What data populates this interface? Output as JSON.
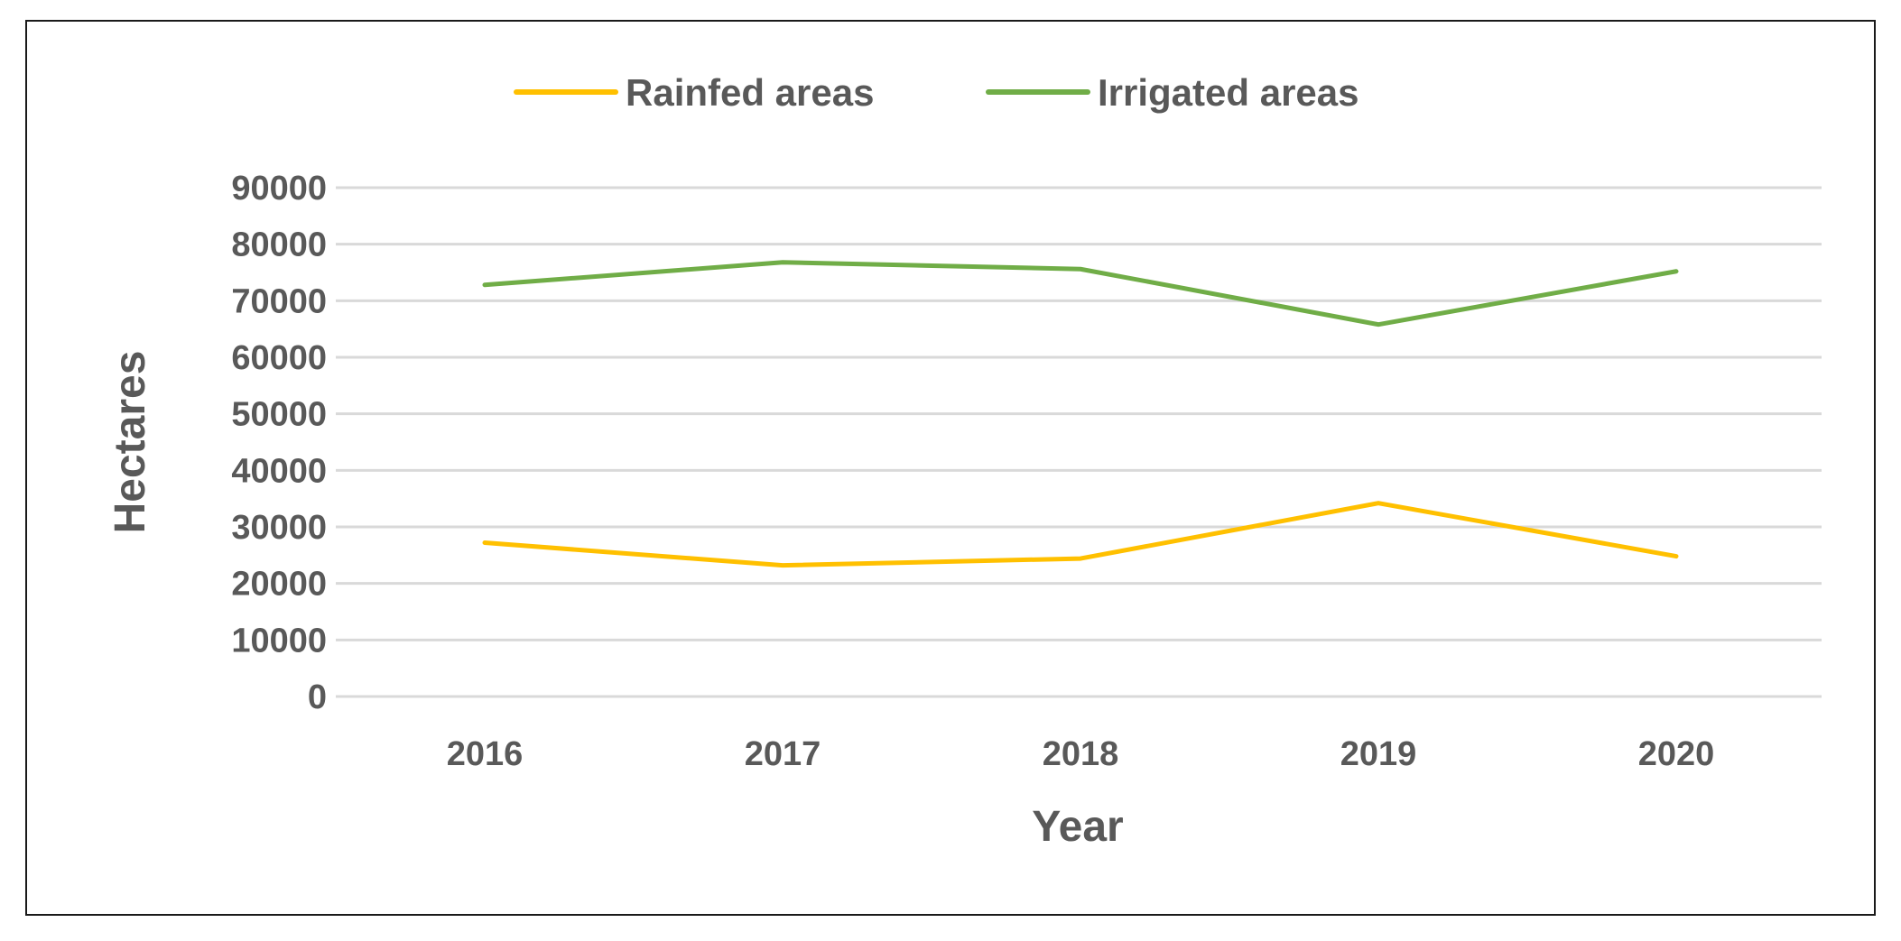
{
  "chart_data": {
    "type": "line",
    "title": "",
    "xlabel": "Year",
    "ylabel": "Hectares",
    "categories": [
      "2016",
      "2017",
      "2018",
      "2019",
      "2020"
    ],
    "ylim": [
      0,
      90000
    ],
    "yticks": [
      0,
      10000,
      20000,
      30000,
      40000,
      50000,
      60000,
      70000,
      80000,
      90000
    ],
    "ytick_labels": [
      "0",
      "10000",
      "20000",
      "30000",
      "40000",
      "50000",
      "60000",
      "70000",
      "80000",
      "90000"
    ],
    "grid": true,
    "legend_position": "top-center",
    "series": [
      {
        "name": "Rainfed areas",
        "color": "#FFC000",
        "values": [
          27200,
          23200,
          24400,
          34200,
          24800
        ]
      },
      {
        "name": "Irrigated areas",
        "color": "#70AD47",
        "values": [
          72800,
          76800,
          75600,
          65800,
          75200
        ]
      }
    ]
  }
}
